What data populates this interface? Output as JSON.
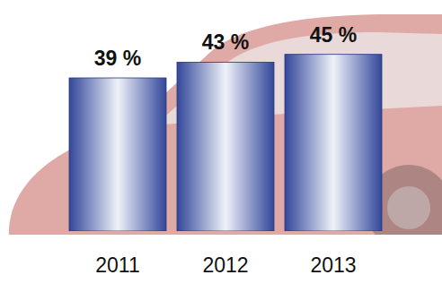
{
  "chart_data": {
    "type": "bar",
    "categories": [
      "2011",
      "2012",
      "2013"
    ],
    "values": [
      39,
      43,
      45
    ],
    "value_labels": [
      "39 %",
      "43 %",
      "45 %"
    ],
    "color": "#33479a",
    "ylim": [
      0,
      52
    ],
    "data_labels": true,
    "tick_labels": "x"
  }
}
